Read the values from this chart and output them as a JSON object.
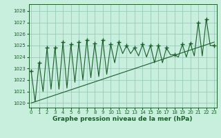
{
  "xlabel": "Graphe pression niveau de la mer (hPa)",
  "bg_color": "#c8eedd",
  "grid_color": "#99ccbb",
  "line_color": "#1a5c2a",
  "xlim": [
    -0.3,
    23.3
  ],
  "ylim": [
    1019.6,
    1028.6
  ],
  "yticks": [
    1020,
    1021,
    1022,
    1023,
    1024,
    1025,
    1026,
    1027,
    1028
  ],
  "xticks": [
    0,
    1,
    2,
    3,
    4,
    5,
    6,
    7,
    8,
    9,
    10,
    11,
    12,
    13,
    14,
    15,
    16,
    17,
    18,
    19,
    20,
    21,
    22,
    23
  ],
  "zigzag_x": [
    0,
    0.5,
    1,
    1.5,
    2,
    2.5,
    3,
    3.5,
    4,
    4.5,
    5,
    5.5,
    6,
    6.5,
    7,
    7.5,
    8,
    8.5,
    9,
    9.5,
    10,
    10.5,
    11,
    11.5,
    12,
    12.5,
    13,
    13.5,
    14,
    14.5,
    15,
    15.5,
    16,
    16.5,
    17,
    17.5,
    18,
    18.5,
    19,
    19.5,
    20,
    20.5,
    21,
    21.5,
    22,
    22.5,
    23
  ],
  "zigzag_y": [
    1022.8,
    1020.1,
    1023.5,
    1021.0,
    1024.8,
    1021.2,
    1024.8,
    1021.2,
    1025.3,
    1021.3,
    1025.1,
    1021.8,
    1025.3,
    1022.0,
    1025.5,
    1022.2,
    1025.2,
    1022.3,
    1025.5,
    1022.5,
    1025.1,
    1023.5,
    1025.3,
    1024.3,
    1025.0,
    1024.3,
    1024.8,
    1024.1,
    1025.1,
    1024.0,
    1025.0,
    1023.5,
    1025.0,
    1023.5,
    1024.8,
    1024.2,
    1024.2,
    1024.0,
    1025.1,
    1024.0,
    1025.2,
    1024.1,
    1027.0,
    1024.1,
    1027.3,
    1025.0,
    1025.0
  ],
  "trend_x": [
    0,
    23
  ],
  "trend_y": [
    1020.0,
    1025.3
  ],
  "peak_x": [
    0,
    1,
    2,
    3,
    4,
    5,
    6,
    7,
    8,
    9,
    10,
    11,
    12,
    13,
    14,
    15,
    16,
    17,
    18,
    19,
    20,
    21,
    22,
    23
  ],
  "peak_y": [
    1022.8,
    1023.5,
    1024.8,
    1024.8,
    1025.3,
    1025.1,
    1025.3,
    1025.5,
    1025.2,
    1025.5,
    1025.1,
    1025.3,
    1025.0,
    1024.8,
    1025.1,
    1025.0,
    1025.0,
    1024.8,
    1024.2,
    1025.1,
    1025.2,
    1027.0,
    1027.3,
    1025.0
  ]
}
